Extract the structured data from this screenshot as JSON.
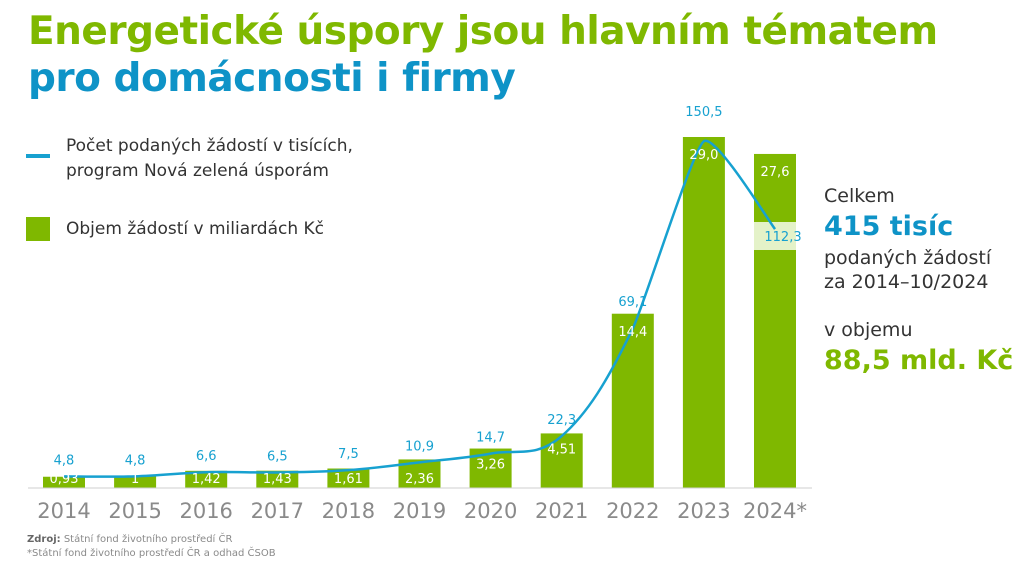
{
  "title": {
    "line1": "Energetické úspory jsou hlavním tématem",
    "line2": "pro domácnosti i firmy"
  },
  "legend": {
    "line_label_1": "Počet podaných žádostí v tisících,",
    "line_label_2": "program Nová zelená úsporám",
    "bar_label": "Objem žádostí v miliardách Kč"
  },
  "summary": {
    "total_label": "Celkem",
    "total_value": "415 tisíc",
    "desc_1": "podaných žádostí",
    "desc_2": "za 2014–10/2024",
    "volume_label": "v objemu",
    "volume_value": "88,5 mld. Kč"
  },
  "source": {
    "prefix": "Zdroj:",
    "text": "Státní fond životního prostředí ČR",
    "note": "*Státní fond životního prostředí ČR a odhad ČSOB"
  },
  "colors": {
    "bar": "#7fb800",
    "line": "#17a1d0",
    "title_green": "#7fb800",
    "title_blue": "#0e93c7",
    "axis_label": "#8a8a8a"
  },
  "chart_data": {
    "type": "bar",
    "categories": [
      "2014",
      "2015",
      "2016",
      "2017",
      "2018",
      "2019",
      "2020",
      "2021",
      "2022",
      "2023",
      "2024*"
    ],
    "series": [
      {
        "name": "Objem žádostí v miliardách Kč",
        "type": "bar",
        "values": [
          0.93,
          1,
          1.42,
          1.43,
          1.61,
          2.36,
          3.26,
          4.51,
          14.4,
          29.0,
          27.6
        ],
        "labels": [
          "0,93",
          "1",
          "1,42",
          "1,43",
          "1,61",
          "2,36",
          "3,26",
          "4,51",
          "14,4",
          "29,0",
          "27,6"
        ]
      },
      {
        "name": "Počet podaných žádostí v tisících, program Nová zelená úsporám",
        "type": "line",
        "values": [
          4.8,
          4.8,
          6.6,
          6.5,
          7.5,
          10.9,
          14.7,
          22.3,
          69.1,
          150.5,
          112.3
        ],
        "labels": [
          "4,8",
          "4,8",
          "6,6",
          "6,5",
          "7,5",
          "10,9",
          "14,7",
          "22,3",
          "69,1",
          "150,5",
          "112,3"
        ]
      }
    ],
    "legend": "top-left",
    "grid": false
  }
}
